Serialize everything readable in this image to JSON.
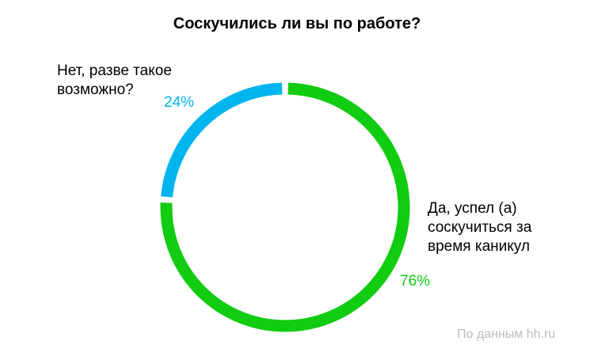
{
  "chart_data": {
    "type": "donut",
    "title": "Соскучились ли вы по работе?",
    "categories": [
      "Да, успел (а) соскучиться за время каникул",
      "Нет, разве такое возможно?"
    ],
    "values": [
      76,
      24
    ],
    "value_labels": [
      "76%",
      "24%"
    ],
    "colors": [
      "#11cc11",
      "#00b4f0"
    ],
    "source": "По данным hh.ru"
  }
}
